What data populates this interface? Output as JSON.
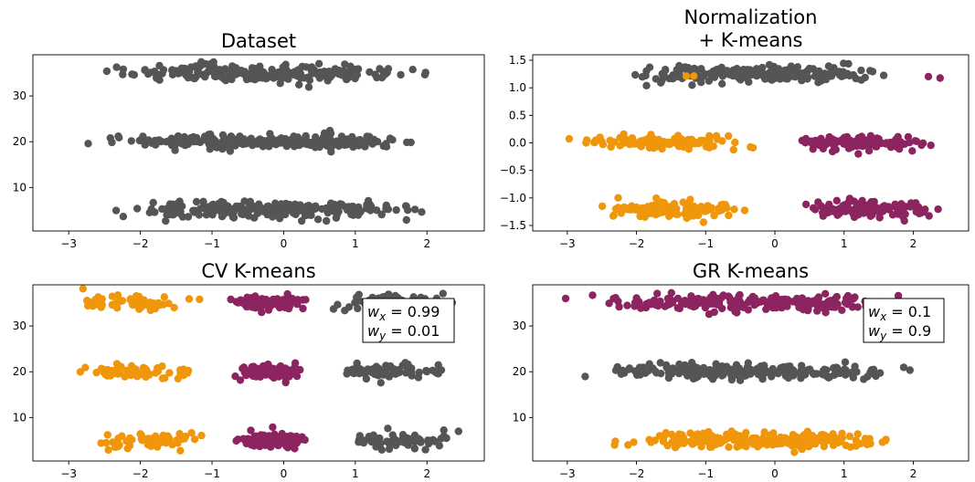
{
  "chart_data": [
    {
      "type": "scatter",
      "title": "Dataset",
      "title_line2": "",
      "xlim": [
        -3.5,
        2.8
      ],
      "ylim": [
        0.5,
        39
      ],
      "xticks": [
        -3,
        -2,
        -1,
        0,
        1,
        2
      ],
      "yticks": [
        10,
        20,
        30
      ],
      "ytick_labels": [
        "10",
        "20",
        "30"
      ],
      "clusters": [
        {
          "color": "#555555",
          "x_range": [
            -3.3,
            2.6
          ],
          "y_center": 35,
          "y_spread": 1.6,
          "count": 230
        },
        {
          "color": "#555555",
          "x_range": [
            -3.2,
            2.55
          ],
          "y_center": 20,
          "y_spread": 1.4,
          "count": 230
        },
        {
          "color": "#555555",
          "x_range": [
            -2.9,
            2.65
          ],
          "y_center": 5,
          "y_spread": 1.6,
          "count": 230
        }
      ],
      "annotation": null
    },
    {
      "type": "scatter",
      "title": "Normalization",
      "title_line2": "+ K-means",
      "xlim": [
        -3.5,
        2.8
      ],
      "ylim": [
        -1.6,
        1.6
      ],
      "xticks": [
        -3,
        -2,
        -1,
        0,
        1,
        2
      ],
      "yticks": [
        -1.5,
        -1.0,
        -0.5,
        0.0,
        0.5,
        1.0,
        1.5
      ],
      "ytick_labels": [
        "−1.5",
        "−1.0",
        "−0.5",
        "0.0",
        "0.5",
        "1.0",
        "1.5"
      ],
      "clusters": [
        {
          "color": "#555555",
          "x_range": [
            -2.6,
            2.2
          ],
          "y_center": 1.25,
          "y_spread": 0.13,
          "count": 220
        },
        {
          "color": "#f0960a",
          "x_range": [
            -3.2,
            0.02
          ],
          "y_center": 1.22,
          "y_spread": 0.02,
          "count": 2
        },
        {
          "color": "#8c2460",
          "x_range": [
            2.15,
            2.4
          ],
          "y_center": 1.15,
          "y_spread": 0.06,
          "count": 2
        },
        {
          "color": "#f0960a",
          "x_range": [
            -3.2,
            0.02
          ],
          "y_center": 0.0,
          "y_spread": 0.11,
          "count": 120
        },
        {
          "color": "#8c2460",
          "x_range": [
            0.03,
            2.55
          ],
          "y_center": 0.0,
          "y_spread": 0.11,
          "count": 110
        },
        {
          "color": "#f0960a",
          "x_range": [
            -2.9,
            0.02
          ],
          "y_center": -1.2,
          "y_spread": 0.13,
          "count": 120
        },
        {
          "color": "#8c2460",
          "x_range": [
            0.03,
            2.6
          ],
          "y_center": -1.2,
          "y_spread": 0.13,
          "count": 110
        }
      ],
      "annotation": null
    },
    {
      "type": "scatter",
      "title": "CV K-means",
      "title_line2": "",
      "xlim": [
        -3.5,
        2.8
      ],
      "ylim": [
        0.5,
        39
      ],
      "xticks": [
        -3,
        -2,
        -1,
        0,
        1,
        2
      ],
      "yticks": [
        10,
        20,
        30
      ],
      "ytick_labels": [
        "10",
        "20",
        "30"
      ],
      "clusters": [
        {
          "color": "#f0960a",
          "x_range": [
            -3.3,
            -0.85
          ],
          "y_center": 35,
          "y_spread": 1.6,
          "count": 60
        },
        {
          "color": "#8c2460",
          "x_range": [
            -0.85,
            0.5
          ],
          "y_center": 35,
          "y_spread": 1.6,
          "count": 90
        },
        {
          "color": "#555555",
          "x_range": [
            0.5,
            2.6
          ],
          "y_center": 35,
          "y_spread": 1.6,
          "count": 70
        },
        {
          "color": "#f0960a",
          "x_range": [
            -3.2,
            -0.85
          ],
          "y_center": 20,
          "y_spread": 1.4,
          "count": 60
        },
        {
          "color": "#8c2460",
          "x_range": [
            -0.85,
            0.5
          ],
          "y_center": 20,
          "y_spread": 1.4,
          "count": 90
        },
        {
          "color": "#555555",
          "x_range": [
            0.5,
            2.55
          ],
          "y_center": 20,
          "y_spread": 1.4,
          "count": 70
        },
        {
          "color": "#f0960a",
          "x_range": [
            -2.9,
            -0.85
          ],
          "y_center": 5,
          "y_spread": 1.6,
          "count": 60
        },
        {
          "color": "#8c2460",
          "x_range": [
            -0.85,
            0.5
          ],
          "y_center": 5,
          "y_spread": 1.6,
          "count": 90
        },
        {
          "color": "#555555",
          "x_range": [
            0.5,
            2.65
          ],
          "y_center": 5,
          "y_spread": 1.6,
          "count": 70
        }
      ],
      "annotation": {
        "line1_var": "w",
        "line1_sub": "x",
        "line1_val": " = 0.99",
        "line2_var": "w",
        "line2_sub": "y",
        "line2_val": " = 0.01"
      }
    },
    {
      "type": "scatter",
      "title": "GR K-means",
      "title_line2": "",
      "xlim": [
        -3.5,
        2.8
      ],
      "ylim": [
        0.5,
        39
      ],
      "xticks": [
        -3,
        -2,
        -1,
        0,
        1,
        2
      ],
      "yticks": [
        10,
        20,
        30
      ],
      "ytick_labels": [
        "10",
        "20",
        "30"
      ],
      "clusters": [
        {
          "color": "#8c2460",
          "x_range": [
            -3.3,
            2.6
          ],
          "y_center": 35,
          "y_spread": 1.6,
          "count": 220
        },
        {
          "color": "#555555",
          "x_range": [
            -3.2,
            2.55
          ],
          "y_center": 20,
          "y_spread": 1.4,
          "count": 220
        },
        {
          "color": "#f0960a",
          "x_range": [
            -2.9,
            2.65
          ],
          "y_center": 5,
          "y_spread": 1.6,
          "count": 220
        }
      ],
      "annotation": {
        "line1_var": "w",
        "line1_sub": "x",
        "line1_val": " = 0.1",
        "line2_var": "w",
        "line2_sub": "y",
        "line2_val": " = 0.9"
      }
    }
  ]
}
